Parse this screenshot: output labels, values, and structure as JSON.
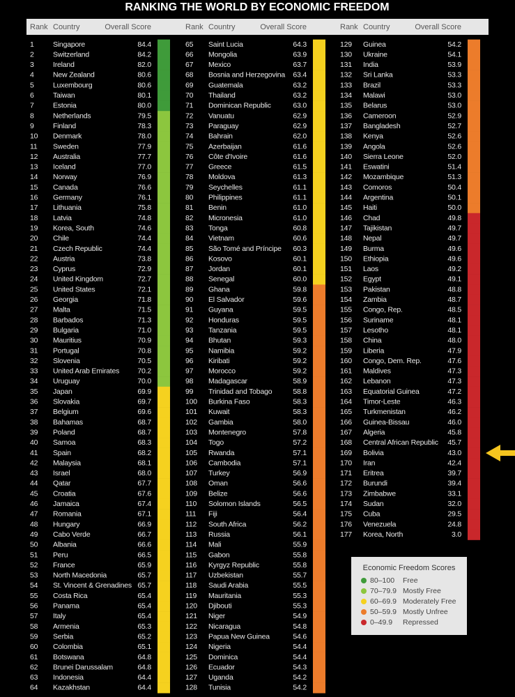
{
  "title": "RANKING THE WORLD BY ECONOMIC FREEDOM",
  "columns": [
    "Rank",
    "Country",
    "Overall Score"
  ],
  "rows": [
    [
      "1",
      "Singapore",
      "84.4"
    ],
    [
      "2",
      "Switzerland",
      "84.2"
    ],
    [
      "3",
      "Ireland",
      "82.0"
    ],
    [
      "4",
      "New Zealand",
      "80.6"
    ],
    [
      "5",
      "Luxembourg",
      "80.6"
    ],
    [
      "6",
      "Taiwan",
      "80.1"
    ],
    [
      "7",
      "Estonia",
      "80.0"
    ],
    [
      "8",
      "Netherlands",
      "79.5"
    ],
    [
      "9",
      "Finland",
      "78.3"
    ],
    [
      "10",
      "Denmark",
      "78.0"
    ],
    [
      "11",
      "Sweden",
      "77.9"
    ],
    [
      "12",
      "Australia",
      "77.7"
    ],
    [
      "13",
      "Iceland",
      "77.0"
    ],
    [
      "14",
      "Norway",
      "76.9"
    ],
    [
      "15",
      "Canada",
      "76.6"
    ],
    [
      "16",
      "Germany",
      "76.1"
    ],
    [
      "17",
      "Lithuania",
      "75.8"
    ],
    [
      "18",
      "Latvia",
      "74.8"
    ],
    [
      "19",
      "Korea, South",
      "74.6"
    ],
    [
      "20",
      "Chile",
      "74.4"
    ],
    [
      "21",
      "Czech Republic",
      "74.4"
    ],
    [
      "22",
      "Austria",
      "73.8"
    ],
    [
      "23",
      "Cyprus",
      "72.9"
    ],
    [
      "24",
      "United Kingdom",
      "72.7"
    ],
    [
      "25",
      "United States",
      "72.1"
    ],
    [
      "26",
      "Georgia",
      "71.8"
    ],
    [
      "27",
      "Malta",
      "71.5"
    ],
    [
      "28",
      "Barbados",
      "71.3"
    ],
    [
      "29",
      "Bulgaria",
      "71.0"
    ],
    [
      "30",
      "Mauritius",
      "70.9"
    ],
    [
      "31",
      "Portugal",
      "70.8"
    ],
    [
      "32",
      "Slovenia",
      "70.5"
    ],
    [
      "33",
      "United Arab Emirates",
      "70.2"
    ],
    [
      "34",
      "Uruguay",
      "70.0"
    ],
    [
      "35",
      "Japan",
      "69.9"
    ],
    [
      "36",
      "Slovakia",
      "69.7"
    ],
    [
      "37",
      "Belgium",
      "69.6"
    ],
    [
      "38",
      "Bahamas",
      "68.7"
    ],
    [
      "39",
      "Poland",
      "68.7"
    ],
    [
      "40",
      "Samoa",
      "68.3"
    ],
    [
      "41",
      "Spain",
      "68.2"
    ],
    [
      "42",
      "Malaysia",
      "68.1"
    ],
    [
      "43",
      "Israel",
      "68.0"
    ],
    [
      "44",
      "Qatar",
      "67.7"
    ],
    [
      "45",
      "Croatia",
      "67.6"
    ],
    [
      "46",
      "Jamaica",
      "67.4"
    ],
    [
      "47",
      "Romania",
      "67.1"
    ],
    [
      "48",
      "Hungary",
      "66.9"
    ],
    [
      "49",
      "Cabo Verde",
      "66.7"
    ],
    [
      "50",
      "Albania",
      "66.6"
    ],
    [
      "51",
      "Peru",
      "66.5"
    ],
    [
      "52",
      "France",
      "65.9"
    ],
    [
      "53",
      "North Macedonia",
      "65.7"
    ],
    [
      "54",
      "St. Vincent & Grenadines",
      "65.7"
    ],
    [
      "55",
      "Costa Rica",
      "65.4"
    ],
    [
      "56",
      "Panama",
      "65.4"
    ],
    [
      "57",
      "Italy",
      "65.4"
    ],
    [
      "58",
      "Armenia",
      "65.3"
    ],
    [
      "59",
      "Serbia",
      "65.2"
    ],
    [
      "60",
      "Colombia",
      "65.1"
    ],
    [
      "61",
      "Botswana",
      "64.8"
    ],
    [
      "62",
      "Brunei Darussalam",
      "64.8"
    ],
    [
      "63",
      "Indonesia",
      "64.4"
    ],
    [
      "64",
      "Kazakhstan",
      "64.4"
    ],
    [
      "65",
      "Saint Lucia",
      "64.3"
    ],
    [
      "66",
      "Mongolia",
      "63.9"
    ],
    [
      "67",
      "Mexico",
      "63.7"
    ],
    [
      "68",
      "Bosnia and Herzegovina",
      "63.4"
    ],
    [
      "69",
      "Guatemala",
      "63.2"
    ],
    [
      "70",
      "Thailand",
      "63.2"
    ],
    [
      "71",
      "Dominican Republic",
      "63.0"
    ],
    [
      "72",
      "Vanuatu",
      "62.9"
    ],
    [
      "73",
      "Paraguay",
      "62.9"
    ],
    [
      "74",
      "Bahrain",
      "62.0"
    ],
    [
      "75",
      "Azerbaijan",
      "61.6"
    ],
    [
      "76",
      "Côte d'Ivoire",
      "61.6"
    ],
    [
      "77",
      "Greece",
      "61.5"
    ],
    [
      "78",
      "Moldova",
      "61.3"
    ],
    [
      "79",
      "Seychelles",
      "61.1"
    ],
    [
      "80",
      "Philippines",
      "61.1"
    ],
    [
      "81",
      "Benin",
      "61.0"
    ],
    [
      "82",
      "Micronesia",
      "61.0"
    ],
    [
      "83",
      "Tonga",
      "60.8"
    ],
    [
      "84",
      "Vietnam",
      "60.6"
    ],
    [
      "85",
      "São Tomé and Príncipe",
      "60.3"
    ],
    [
      "86",
      "Kosovo",
      "60.1"
    ],
    [
      "87",
      "Jordan",
      "60.1"
    ],
    [
      "88",
      "Senegal",
      "60.0"
    ],
    [
      "89",
      "Ghana",
      "59.8"
    ],
    [
      "90",
      "El Salvador",
      "59.6"
    ],
    [
      "91",
      "Guyana",
      "59.5"
    ],
    [
      "92",
      "Honduras",
      "59.5"
    ],
    [
      "93",
      "Tanzania",
      "59.5"
    ],
    [
      "94",
      "Bhutan",
      "59.3"
    ],
    [
      "95",
      "Namibia",
      "59.2"
    ],
    [
      "96",
      "Kiribati",
      "59.2"
    ],
    [
      "97",
      "Morocco",
      "59.2"
    ],
    [
      "98",
      "Madagascar",
      "58.9"
    ],
    [
      "99",
      "Trinidad and Tobago",
      "58.8"
    ],
    [
      "100",
      "Burkina Faso",
      "58.3"
    ],
    [
      "101",
      "Kuwait",
      "58.3"
    ],
    [
      "102",
      "Gambia",
      "58.0"
    ],
    [
      "103",
      "Montenegro",
      "57.8"
    ],
    [
      "104",
      "Togo",
      "57.2"
    ],
    [
      "105",
      "Rwanda",
      "57.1"
    ],
    [
      "106",
      "Cambodia",
      "57.1"
    ],
    [
      "107",
      "Turkey",
      "56.9"
    ],
    [
      "108",
      "Oman",
      "56.6"
    ],
    [
      "109",
      "Belize",
      "56.6"
    ],
    [
      "110",
      "Solomon Islands",
      "56.5"
    ],
    [
      "111",
      "Fiji",
      "56.4"
    ],
    [
      "112",
      "South Africa",
      "56.2"
    ],
    [
      "113",
      "Russia",
      "56.1"
    ],
    [
      "114",
      "Mali",
      "55.9"
    ],
    [
      "115",
      "Gabon",
      "55.8"
    ],
    [
      "116",
      "Kyrgyz Republic",
      "55.8"
    ],
    [
      "117",
      "Uzbekistan",
      "55.7"
    ],
    [
      "118",
      "Saudi Arabia",
      "55.5"
    ],
    [
      "119",
      "Mauritania",
      "55.3"
    ],
    [
      "120",
      "Djibouti",
      "55.3"
    ],
    [
      "121",
      "Niger",
      "54.9"
    ],
    [
      "122",
      "Nicaragua",
      "54.8"
    ],
    [
      "123",
      "Papua New Guinea",
      "54.6"
    ],
    [
      "124",
      "Nigeria",
      "54.4"
    ],
    [
      "125",
      "Dominica",
      "54.4"
    ],
    [
      "126",
      "Ecuador",
      "54.3"
    ],
    [
      "127",
      "Uganda",
      "54.2"
    ],
    [
      "128",
      "Tunisia",
      "54.2"
    ],
    [
      "129",
      "Guinea",
      "54.2"
    ],
    [
      "130",
      "Ukraine",
      "54.1"
    ],
    [
      "131",
      "India",
      "53.9"
    ],
    [
      "132",
      "Sri Lanka",
      "53.3"
    ],
    [
      "133",
      "Brazil",
      "53.3"
    ],
    [
      "134",
      "Malawi",
      "53.0"
    ],
    [
      "135",
      "Belarus",
      "53.0"
    ],
    [
      "136",
      "Cameroon",
      "52.9"
    ],
    [
      "137",
      "Bangladesh",
      "52.7"
    ],
    [
      "138",
      "Kenya",
      "52.6"
    ],
    [
      "139",
      "Angola",
      "52.6"
    ],
    [
      "140",
      "Sierra Leone",
      "52.0"
    ],
    [
      "141",
      "Eswatini",
      "51.4"
    ],
    [
      "142",
      "Mozambique",
      "51.3"
    ],
    [
      "143",
      "Comoros",
      "50.4"
    ],
    [
      "144",
      "Argentina",
      "50.1"
    ],
    [
      "145",
      "Haiti",
      "50.0"
    ],
    [
      "146",
      "Chad",
      "49.8"
    ],
    [
      "147",
      "Tajikistan",
      "49.7"
    ],
    [
      "148",
      "Nepal",
      "49.7"
    ],
    [
      "149",
      "Burma",
      "49.6"
    ],
    [
      "150",
      "Ethiopia",
      "49.6"
    ],
    [
      "151",
      "Laos",
      "49.2"
    ],
    [
      "152",
      "Egypt",
      "49.1"
    ],
    [
      "153",
      "Pakistan",
      "48.8"
    ],
    [
      "154",
      "Zambia",
      "48.7"
    ],
    [
      "155",
      "Congo, Rep.",
      "48.5"
    ],
    [
      "156",
      "Suriname",
      "48.1"
    ],
    [
      "157",
      "Lesotho",
      "48.1"
    ],
    [
      "158",
      "China",
      "48.0"
    ],
    [
      "159",
      "Liberia",
      "47.9"
    ],
    [
      "160",
      "Congo, Dem. Rep.",
      "47.6"
    ],
    [
      "161",
      "Maldives",
      "47.3"
    ],
    [
      "162",
      "Lebanon",
      "47.3"
    ],
    [
      "163",
      "Equatorial Guinea",
      "47.2"
    ],
    [
      "164",
      "Timor-Leste",
      "46.3"
    ],
    [
      "165",
      "Turkmenistan",
      "46.2"
    ],
    [
      "166",
      "Guinea-Bissau",
      "46.0"
    ],
    [
      "167",
      "Algeria",
      "45.8"
    ],
    [
      "168",
      "Central African Republic",
      "45.7"
    ],
    [
      "169",
      "Bolivia",
      "43.0"
    ],
    [
      "170",
      "Iran",
      "42.4"
    ],
    [
      "171",
      "Eritrea",
      "39.7"
    ],
    [
      "172",
      "Burundi",
      "39.4"
    ],
    [
      "173",
      "Zimbabwe",
      "33.1"
    ],
    [
      "174",
      "Sudan",
      "32.0"
    ],
    [
      "175",
      "Cuba",
      "29.5"
    ],
    [
      "176",
      "Venezuela",
      "24.8"
    ],
    [
      "177",
      "Korea, North",
      "3.0"
    ]
  ],
  "legend": {
    "title": "Economic Freedom Scores",
    "items": [
      {
        "range": "80–100",
        "label": "Free",
        "color": "#3f9b3a"
      },
      {
        "range": "70–79.9",
        "label": "Mostly Free",
        "color": "#8cc63e"
      },
      {
        "range": "60–69.9",
        "label": "Moderately Free",
        "color": "#f5d11f"
      },
      {
        "range": "50–59.9",
        "label": "Mostly Unfree",
        "color": "#ec7c2b"
      },
      {
        "range": "0–49.9",
        "label": "Repressed",
        "color": "#c9272b"
      }
    ]
  }
}
